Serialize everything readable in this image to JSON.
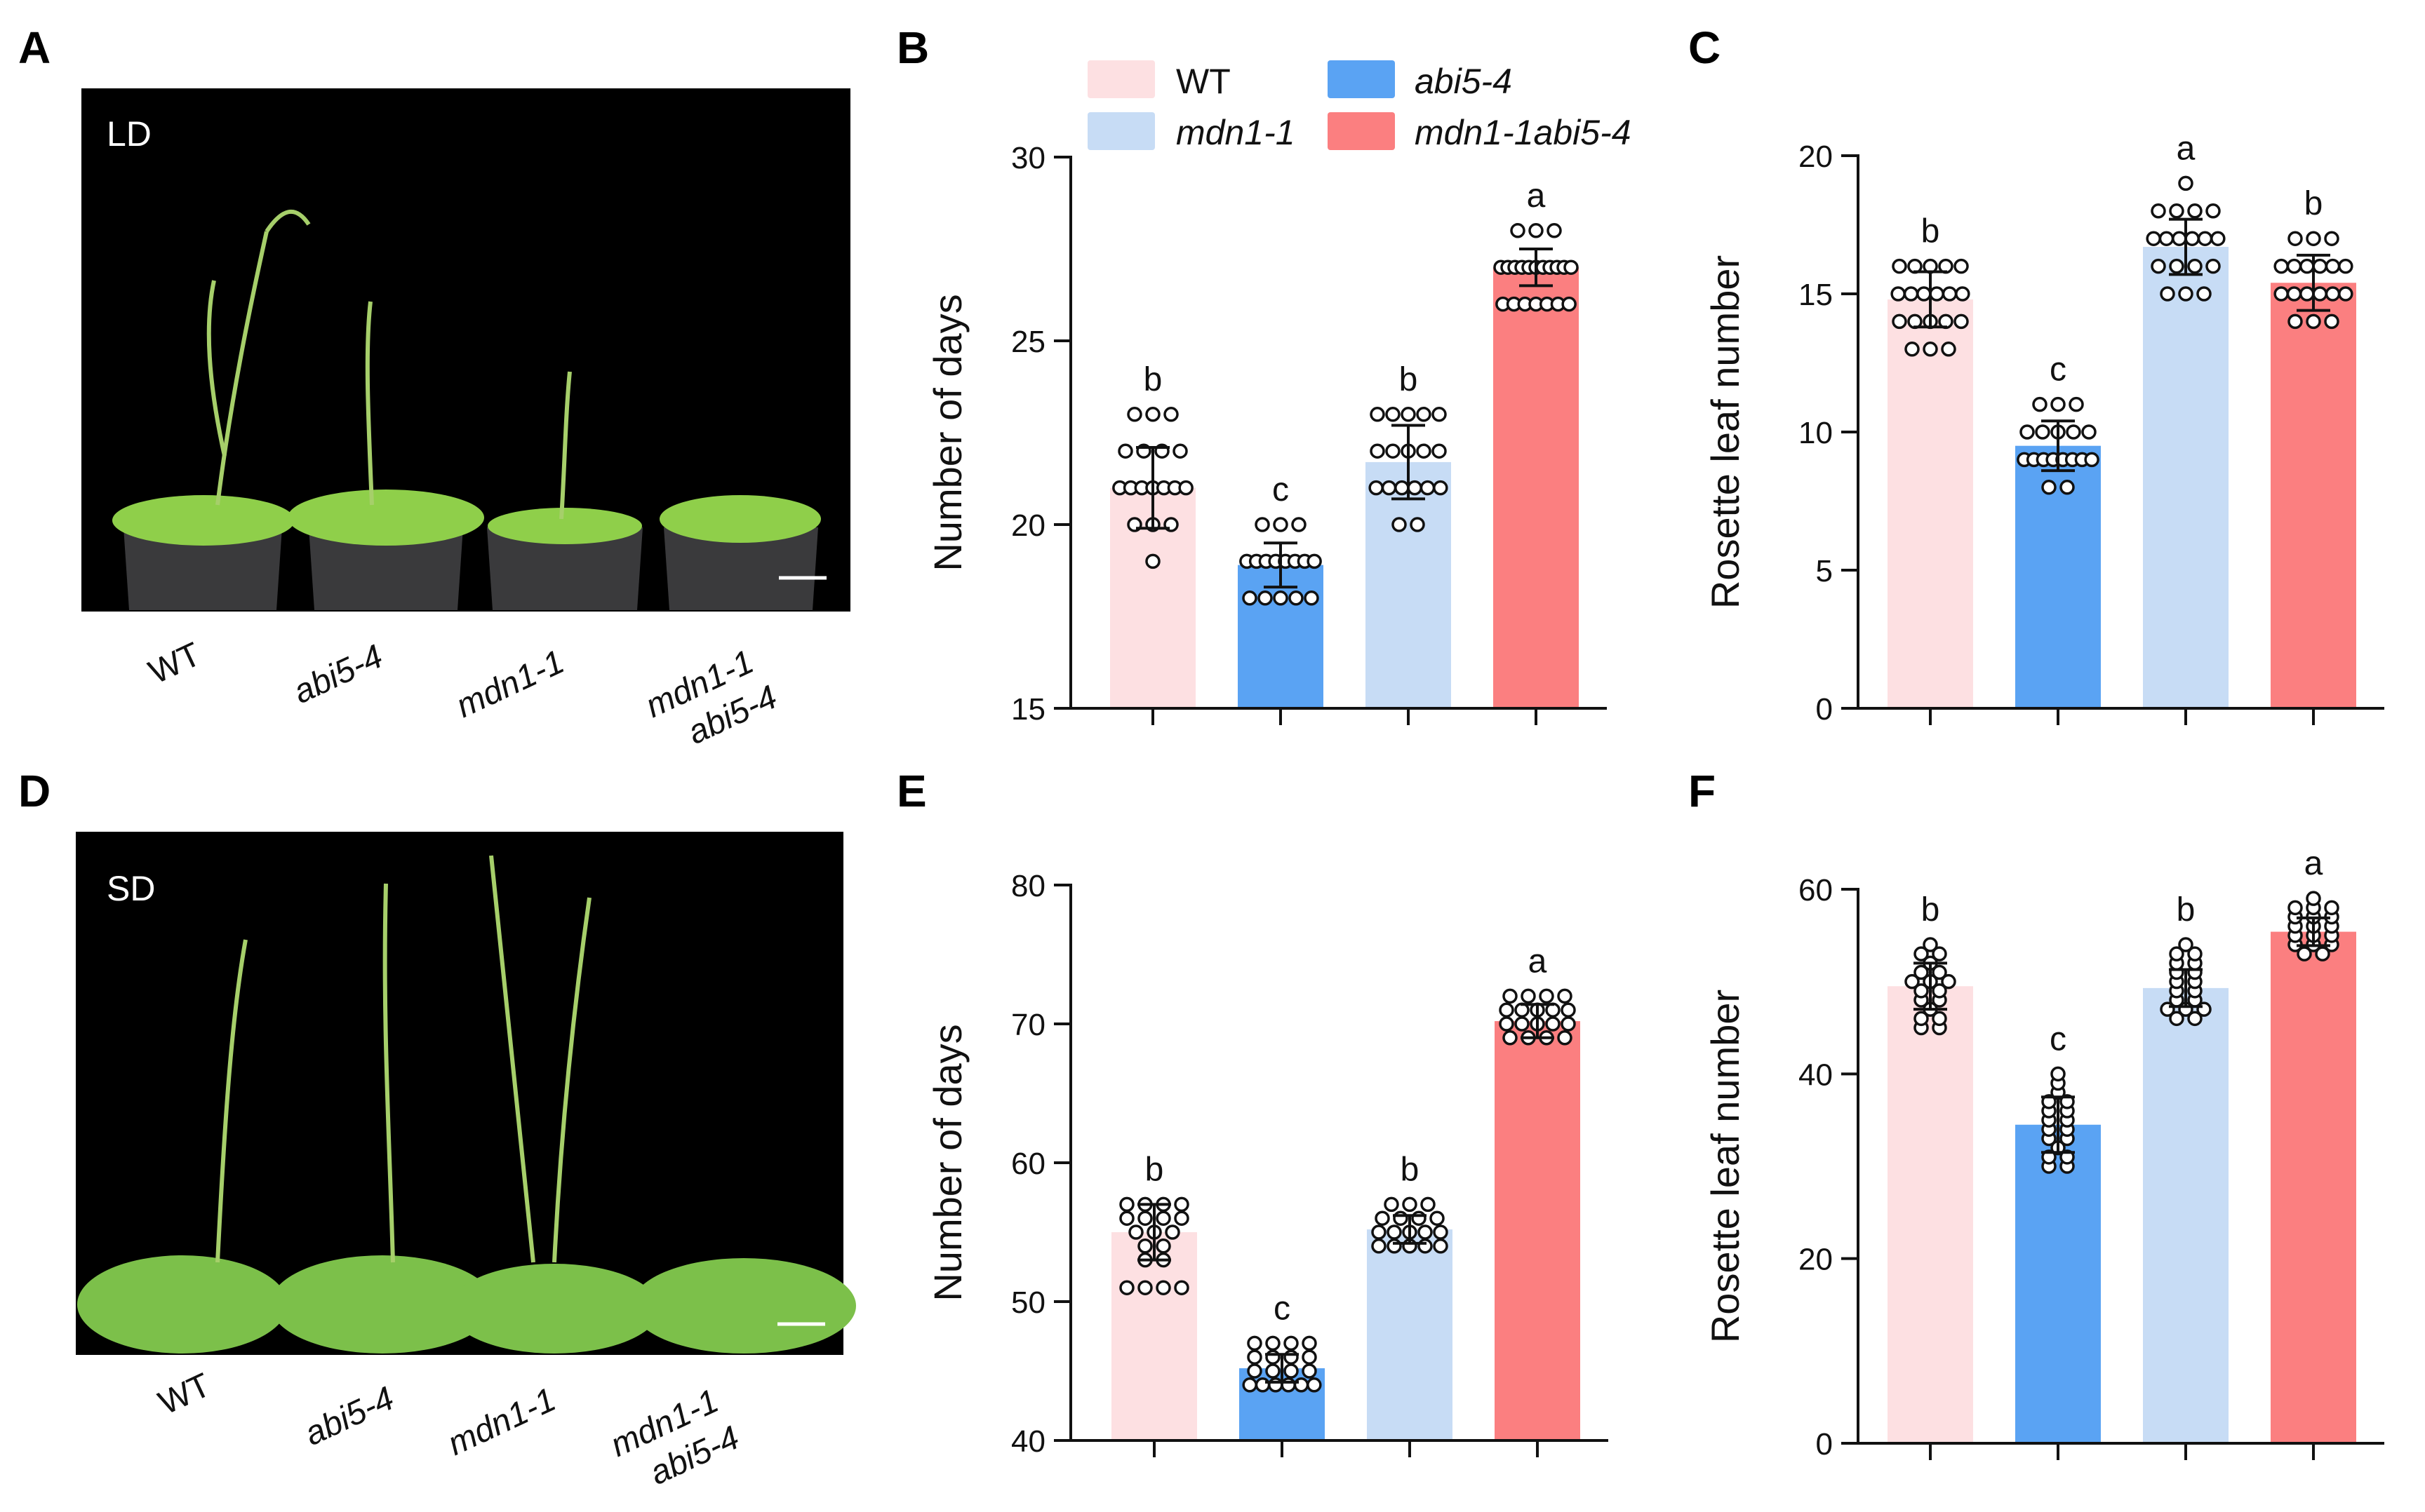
{
  "colors": {
    "WT": "#fde0e2",
    "abi5-4": "#5aa3f3",
    "mdn1-1": "#c7dcf5",
    "mdn1-1abi5-4": "#fb7f80"
  },
  "legend": [
    {
      "key": "WT",
      "label": "WT",
      "italic": false
    },
    {
      "key": "abi5-4",
      "label": "abi5-4",
      "italic": true
    },
    {
      "key": "mdn1-1",
      "label": "mdn1-1",
      "italic": true
    },
    {
      "key": "mdn1-1abi5-4",
      "label": "mdn1-1abi5-4",
      "italic": true
    }
  ],
  "photos": [
    {
      "id": "A",
      "condition": "LD",
      "genotype_labels": [
        "WT",
        "abi5-4",
        "mdn1-1",
        "mdn1-1",
        "abi5-4"
      ]
    },
    {
      "id": "D",
      "condition": "SD",
      "genotype_labels": [
        "WT",
        "abi5-4",
        "mdn1-1",
        "mdn1-1",
        "abi5-4"
      ]
    }
  ],
  "chart_data": [
    {
      "id": "B",
      "type": "bar",
      "condition": "LD",
      "title": "",
      "xlabel": "",
      "ylabel": "Number of days",
      "ylim": [
        15,
        30
      ],
      "yticks": [
        15,
        20,
        25,
        30
      ],
      "categories": [
        "WT",
        "mdn1-1",
        "abi5-4",
        "mdn1-1abi5-4"
      ],
      "bar_order": [
        "WT",
        "abi5-4",
        "mdn1-1",
        "mdn1-1abi5-4"
      ],
      "values": [
        21.0,
        21.7,
        18.9,
        27.0
      ],
      "errors": [
        1.1,
        1.0,
        0.6,
        0.5
      ],
      "significance": [
        "b",
        "b",
        "c",
        "a"
      ],
      "points": [
        [
          19,
          20,
          20,
          20,
          21,
          21,
          21,
          21,
          21,
          21,
          21,
          22,
          22,
          22,
          22,
          23,
          23,
          23
        ],
        [
          20,
          20,
          21,
          21,
          21,
          21,
          21,
          21,
          22,
          22,
          22,
          22,
          22,
          23,
          23,
          23,
          23,
          23
        ],
        [
          18,
          18,
          18,
          18,
          18,
          19,
          19,
          19,
          19,
          19,
          19,
          19,
          19,
          20,
          20,
          20
        ],
        [
          26,
          26,
          26,
          26,
          26,
          26,
          26,
          27,
          27,
          27,
          27,
          27,
          27,
          27,
          27,
          27,
          27,
          27,
          28,
          28,
          28
        ]
      ]
    },
    {
      "id": "C",
      "type": "bar",
      "condition": "LD",
      "title": "",
      "xlabel": "",
      "ylabel": "Rosette leaf number",
      "ylim": [
        0,
        20
      ],
      "yticks": [
        0,
        5,
        10,
        15,
        20
      ],
      "categories": [
        "WT",
        "mdn1-1",
        "abi5-4",
        "mdn1-1abi5-4"
      ],
      "bar_order": [
        "WT",
        "abi5-4",
        "mdn1-1",
        "mdn1-1abi5-4"
      ],
      "values": [
        14.8,
        16.7,
        9.5,
        15.4
      ],
      "errors": [
        1.0,
        1.0,
        0.9,
        1.0
      ],
      "significance": [
        "b",
        "a",
        "c",
        "b"
      ],
      "points": [
        [
          13,
          13,
          13,
          14,
          14,
          14,
          14,
          14,
          15,
          15,
          15,
          15,
          15,
          15,
          16,
          16,
          16,
          16,
          16
        ],
        [
          15,
          15,
          15,
          16,
          16,
          16,
          16,
          17,
          17,
          17,
          17,
          17,
          17,
          18,
          18,
          18,
          18,
          19
        ],
        [
          8,
          8,
          9,
          9,
          9,
          9,
          9,
          9,
          9,
          9,
          10,
          10,
          10,
          10,
          10,
          11,
          11,
          11
        ],
        [
          14,
          14,
          14,
          15,
          15,
          15,
          15,
          15,
          15,
          16,
          16,
          16,
          16,
          16,
          16,
          17,
          17,
          17
        ]
      ]
    },
    {
      "id": "E",
      "type": "bar",
      "condition": "SD",
      "title": "",
      "xlabel": "",
      "ylabel": "Number of days",
      "ylim": [
        40,
        80
      ],
      "yticks": [
        40,
        50,
        60,
        70,
        80
      ],
      "categories": [
        "WT",
        "mdn1-1",
        "abi5-4",
        "mdn1-1abi5-4"
      ],
      "bar_order": [
        "WT",
        "abi5-4",
        "mdn1-1",
        "mdn1-1abi5-4"
      ],
      "values": [
        55.0,
        55.2,
        45.2,
        70.2
      ],
      "errors": [
        2.0,
        1.0,
        1.0,
        1.2
      ],
      "significance": [
        "b",
        "b",
        "c",
        "a"
      ],
      "points": [
        [
          51,
          51,
          51,
          51,
          53,
          53,
          54,
          54,
          55,
          55,
          55,
          56,
          56,
          56,
          56,
          57,
          57,
          57,
          57
        ],
        [
          54,
          54,
          54,
          54,
          54,
          55,
          55,
          55,
          55,
          55,
          56,
          56,
          56,
          56,
          57,
          57,
          57
        ],
        [
          44,
          44,
          44,
          44,
          44,
          44,
          45,
          45,
          45,
          45,
          46,
          46,
          46,
          46,
          47,
          47,
          47,
          47
        ],
        [
          69,
          69,
          69,
          69,
          70,
          70,
          70,
          70,
          70,
          71,
          71,
          71,
          71,
          71,
          72,
          72,
          72,
          72
        ]
      ]
    },
    {
      "id": "F",
      "type": "bar",
      "condition": "SD",
      "title": "",
      "xlabel": "",
      "ylabel": "Rosette leaf number",
      "ylim": [
        0,
        60
      ],
      "yticks": [
        0,
        20,
        40,
        60
      ],
      "categories": [
        "WT",
        "mdn1-1",
        "abi5-4",
        "mdn1-1abi5-4"
      ],
      "bar_order": [
        "WT",
        "abi5-4",
        "mdn1-1",
        "mdn1-1abi5-4"
      ],
      "values": [
        49.5,
        49.3,
        34.5,
        55.4
      ],
      "errors": [
        2.5,
        2.0,
        3.0,
        1.5
      ],
      "significance": [
        "b",
        "b",
        "c",
        "a"
      ],
      "points": [
        [
          45,
          45,
          46,
          46,
          47,
          48,
          48,
          49,
          49,
          50,
          50,
          50,
          51,
          51,
          52,
          53,
          53,
          54
        ],
        [
          46,
          46,
          47,
          47,
          47,
          48,
          48,
          49,
          49,
          50,
          50,
          51,
          51,
          52,
          52,
          53,
          53,
          54
        ],
        [
          30,
          30,
          31,
          31,
          32,
          33,
          33,
          34,
          34,
          35,
          35,
          36,
          36,
          37,
          37,
          38,
          39,
          40
        ],
        [
          53,
          53,
          54,
          54,
          54,
          55,
          55,
          55,
          56,
          56,
          56,
          57,
          57,
          57,
          58,
          58,
          58,
          59
        ]
      ]
    }
  ]
}
